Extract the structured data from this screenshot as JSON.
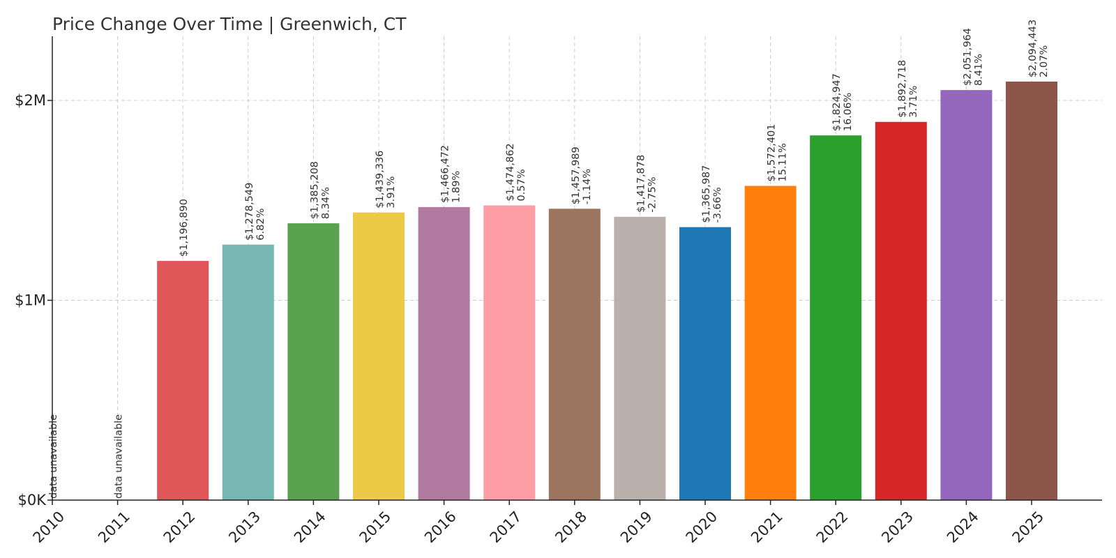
{
  "chart_data": {
    "type": "bar",
    "title": "Price Change Over Time | Greenwich, CT",
    "xlabel": "",
    "ylabel": "",
    "ylim": [
      0,
      2300000
    ],
    "yticks": [
      0,
      1000000,
      2000000
    ],
    "ytick_labels": [
      "$0K",
      "$1M",
      "$2M"
    ],
    "grid": true,
    "categories": [
      "2010",
      "2011",
      "2012",
      "2013",
      "2014",
      "2015",
      "2016",
      "2017",
      "2018",
      "2019",
      "2020",
      "2021",
      "2022",
      "2023",
      "2024",
      "2025"
    ],
    "values": [
      null,
      null,
      1196890,
      1278549,
      1385208,
      1439336,
      1466472,
      1474862,
      1457989,
      1417878,
      1365987,
      1572401,
      1824947,
      1892718,
      2051964,
      2094443
    ],
    "value_labels": [
      "data unavailable",
      "data unavailable",
      "$1,196,890",
      "$1,278,549",
      "$1,385,208",
      "$1,439,336",
      "$1,466,472",
      "$1,474,862",
      "$1,457,989",
      "$1,417,878",
      "$1,365,987",
      "$1,572,401",
      "$1,824,947",
      "$1,892,718",
      "$2,051,964",
      "$2,094,443"
    ],
    "change_labels": [
      "",
      "",
      "",
      "6.82%",
      "8.34%",
      "3.91%",
      "1.89%",
      "0.57%",
      "-1.14%",
      "-2.75%",
      "-3.66%",
      "15.11%",
      "16.06%",
      "3.71%",
      "8.41%",
      "2.07%"
    ],
    "colors": [
      "#1f77b4",
      "#ff7f0e",
      "#e15759",
      "#76b7b2",
      "#59a14f",
      "#edc948",
      "#b07aa1",
      "#ff9da7",
      "#9c755f",
      "#bab0ac",
      "#1f77b4",
      "#ff7f0e",
      "#2ca02c",
      "#d62728",
      "#9467bd",
      "#8c564b"
    ]
  }
}
